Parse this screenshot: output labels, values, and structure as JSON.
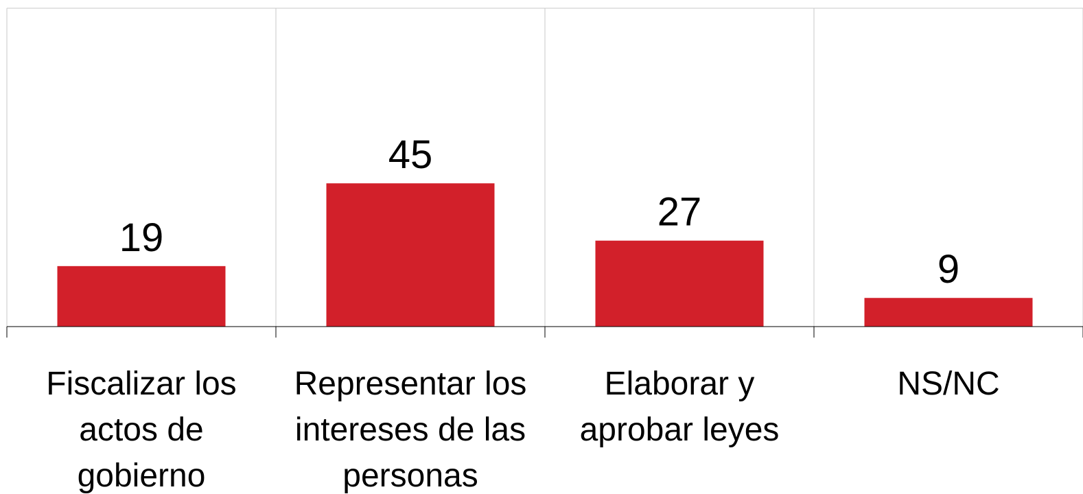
{
  "chart_data": {
    "type": "bar",
    "categories": [
      "Fiscalizar los actos de gobierno",
      "Representar los intereses de las personas",
      "Elaborar y aprobar leyes",
      "NS/NC"
    ],
    "values": [
      19,
      45,
      27,
      9
    ],
    "color": "#d2202a",
    "ylim": [
      0,
      100
    ]
  }
}
